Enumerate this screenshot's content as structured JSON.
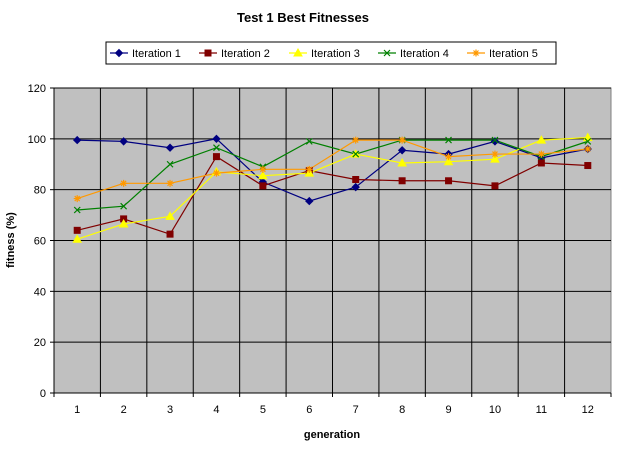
{
  "chart_data": {
    "type": "line",
    "title": "Test 1 Best Fitnesses",
    "xlabel": "generation",
    "ylabel": "fitness (%)",
    "categories": [
      "1",
      "2",
      "3",
      "4",
      "5",
      "6",
      "7",
      "8",
      "9",
      "10",
      "11",
      "12"
    ],
    "ylim": [
      0,
      120
    ],
    "yticks": [
      0,
      20,
      40,
      60,
      80,
      100,
      120
    ],
    "grid": true,
    "legend_position": "top",
    "plot_background": "#c0c0c0",
    "series": [
      {
        "name": "Iteration 1",
        "color": "#000080",
        "marker": "diamond",
        "values": [
          99.5,
          99,
          96.5,
          100,
          83,
          75.5,
          81,
          95.5,
          94,
          99,
          92.5,
          96
        ]
      },
      {
        "name": "Iteration 2",
        "color": "#800000",
        "marker": "square",
        "values": [
          64,
          68.5,
          62.5,
          93,
          81.5,
          87.5,
          84,
          83.5,
          83.5,
          81.5,
          90.5,
          89.5
        ]
      },
      {
        "name": "Iteration 3",
        "color": "#ffff00",
        "marker": "triangle",
        "values": [
          60.5,
          66.5,
          69.5,
          87,
          85.5,
          86.5,
          94,
          90.5,
          91,
          92,
          99.5,
          100.5
        ]
      },
      {
        "name": "Iteration 4",
        "color": "#008000",
        "marker": "x",
        "values": [
          72,
          73.5,
          90,
          96.5,
          89,
          99,
          94,
          99.5,
          99.5,
          99.5,
          93,
          99
        ]
      },
      {
        "name": "Iteration 5",
        "color": "#ff9900",
        "marker": "star",
        "values": [
          76.5,
          82.5,
          82.5,
          86.5,
          88,
          88,
          99.5,
          99.5,
          93,
          94,
          94,
          96
        ]
      }
    ]
  }
}
